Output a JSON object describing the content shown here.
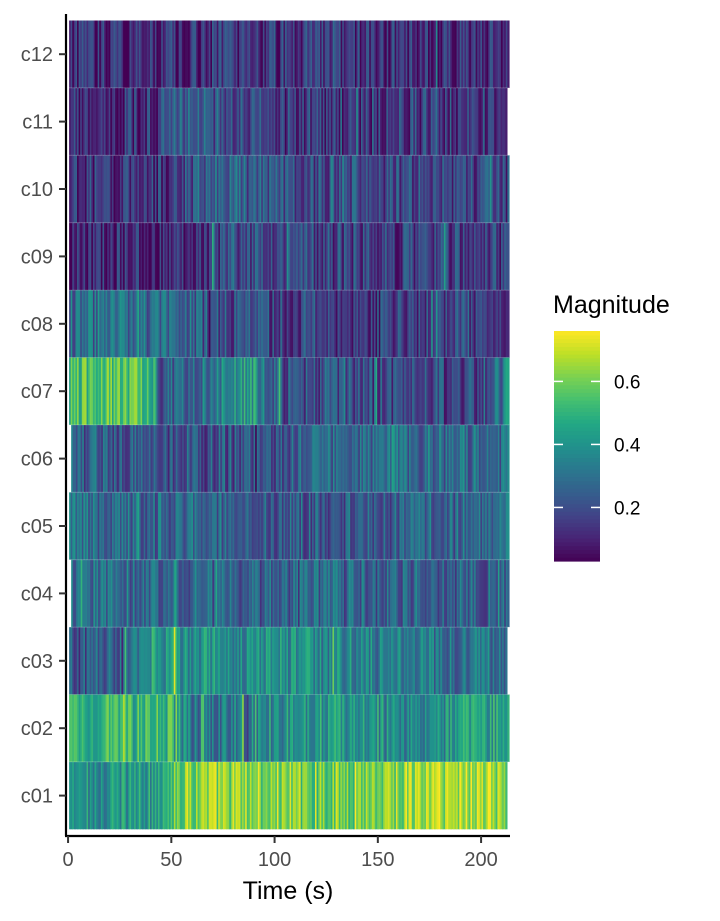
{
  "chart_data": {
    "type": "heatmap",
    "xlabel": "Time (s)",
    "ylabel": "",
    "xlim": [
      -1,
      214
    ],
    "x_ticks": [
      0,
      50,
      100,
      150,
      200
    ],
    "rows": [
      {
        "label": "c01",
        "start": 0.5,
        "end": 212.5,
        "profile": [
          [
            0,
            0.38
          ],
          [
            40,
            0.42
          ],
          [
            48,
            0.55
          ],
          [
            60,
            0.63
          ],
          [
            100,
            0.62
          ],
          [
            125,
            0.6
          ],
          [
            150,
            0.62
          ],
          [
            175,
            0.66
          ],
          [
            200,
            0.68
          ],
          [
            212,
            0.6
          ]
        ]
      },
      {
        "label": "c02",
        "start": 0.5,
        "end": 213.5,
        "profile": [
          [
            0,
            0.5
          ],
          [
            50,
            0.5
          ],
          [
            60,
            0.3
          ],
          [
            80,
            0.32
          ],
          [
            100,
            0.38
          ],
          [
            130,
            0.42
          ],
          [
            160,
            0.36
          ],
          [
            175,
            0.35
          ],
          [
            185,
            0.4
          ],
          [
            213,
            0.45
          ]
        ]
      },
      {
        "label": "c03",
        "start": 0.5,
        "end": 212.5,
        "profile": [
          [
            0,
            0.22
          ],
          [
            30,
            0.27
          ],
          [
            38,
            0.42
          ],
          [
            60,
            0.4
          ],
          [
            100,
            0.38
          ],
          [
            150,
            0.35
          ],
          [
            200,
            0.3
          ],
          [
            212,
            0.3
          ]
        ]
      },
      {
        "label": "c04",
        "start": 1.5,
        "end": 213.5,
        "profile": [
          [
            0,
            0.3
          ],
          [
            50,
            0.28
          ],
          [
            100,
            0.25
          ],
          [
            150,
            0.27
          ],
          [
            213,
            0.25
          ]
        ]
      },
      {
        "label": "c05",
        "start": 0.5,
        "end": 213.5,
        "profile": [
          [
            0,
            0.3
          ],
          [
            50,
            0.27
          ],
          [
            100,
            0.24
          ],
          [
            150,
            0.25
          ],
          [
            213,
            0.3
          ]
        ]
      },
      {
        "label": "c06",
        "start": 1.5,
        "end": 213.5,
        "profile": [
          [
            0,
            0.25
          ],
          [
            50,
            0.22
          ],
          [
            100,
            0.22
          ],
          [
            150,
            0.3
          ],
          [
            213,
            0.28
          ]
        ]
      },
      {
        "label": "c07",
        "start": 0.5,
        "end": 213.5,
        "profile": [
          [
            0,
            0.55
          ],
          [
            40,
            0.55
          ],
          [
            45,
            0.25
          ],
          [
            70,
            0.32
          ],
          [
            90,
            0.45
          ],
          [
            100,
            0.22
          ],
          [
            150,
            0.2
          ],
          [
            200,
            0.18
          ],
          [
            213,
            0.35
          ]
        ]
      },
      {
        "label": "c08",
        "start": 0.5,
        "end": 213.5,
        "profile": [
          [
            0,
            0.28
          ],
          [
            60,
            0.28
          ],
          [
            70,
            0.2
          ],
          [
            150,
            0.17
          ],
          [
            213,
            0.2
          ]
        ]
      },
      {
        "label": "c09",
        "start": 0.5,
        "end": 213.5,
        "profile": [
          [
            0,
            0.1
          ],
          [
            60,
            0.12
          ],
          [
            80,
            0.2
          ],
          [
            150,
            0.17
          ],
          [
            213,
            0.15
          ]
        ]
      },
      {
        "label": "c10",
        "start": 0.5,
        "end": 213.5,
        "profile": [
          [
            0,
            0.15
          ],
          [
            50,
            0.15
          ],
          [
            70,
            0.28
          ],
          [
            100,
            0.2
          ],
          [
            150,
            0.2
          ],
          [
            213,
            0.18
          ]
        ]
      },
      {
        "label": "c11",
        "start": 0.5,
        "end": 212.5,
        "profile": [
          [
            0,
            0.12
          ],
          [
            45,
            0.15
          ],
          [
            50,
            0.25
          ],
          [
            70,
            0.22
          ],
          [
            100,
            0.15
          ],
          [
            150,
            0.15
          ],
          [
            212,
            0.18
          ]
        ]
      },
      {
        "label": "c12",
        "start": 0.5,
        "end": 213.5,
        "profile": [
          [
            0,
            0.12
          ],
          [
            60,
            0.12
          ],
          [
            70,
            0.15
          ],
          [
            150,
            0.13
          ],
          [
            213,
            0.12
          ]
        ]
      }
    ],
    "legend": {
      "title": "Magnitude",
      "placement": "right",
      "range": [
        0.03,
        0.76
      ],
      "ticks": [
        0.2,
        0.4,
        0.6
      ]
    },
    "colormap": "viridis"
  }
}
